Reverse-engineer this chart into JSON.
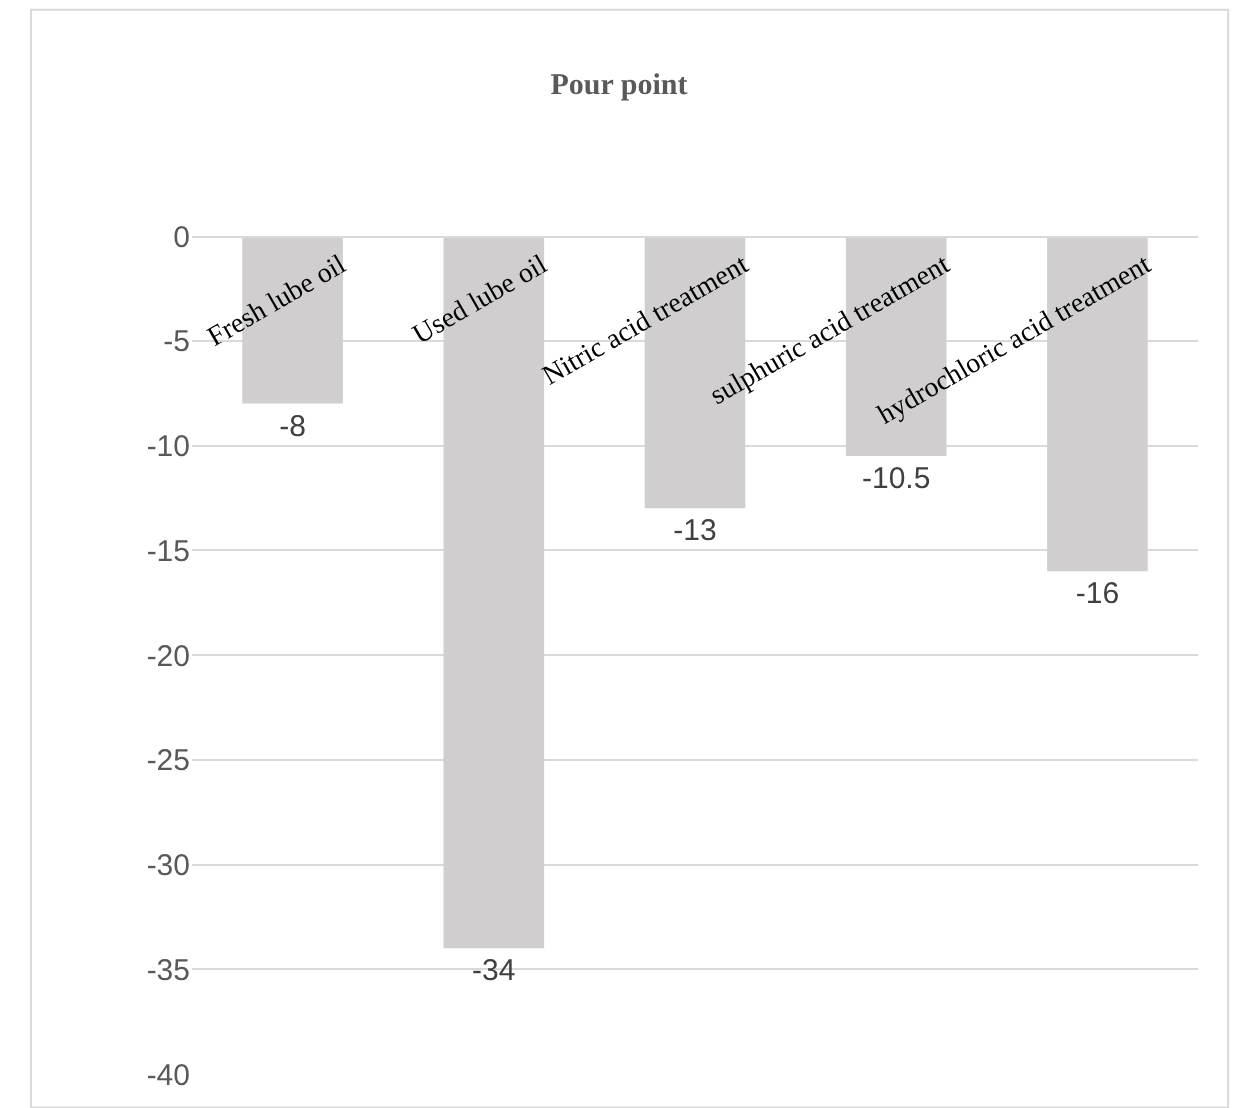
{
  "chart_data": {
    "type": "bar",
    "title": "Pour point",
    "categories": [
      "Fresh lube oil",
      "Used lube oil",
      "Nitric acid treatment",
      "sulphuric acid treatment",
      "hydrochloric acid treatment"
    ],
    "values": [
      -8,
      -34,
      -13,
      -10.5,
      -16
    ],
    "color": "#d0cece",
    "ylim": [
      -40,
      0
    ],
    "yticks": [
      -40,
      -35,
      -30,
      -25,
      -20,
      -15,
      -10,
      -5,
      0
    ],
    "grid": "y",
    "data_labels": true,
    "legend": false
  }
}
